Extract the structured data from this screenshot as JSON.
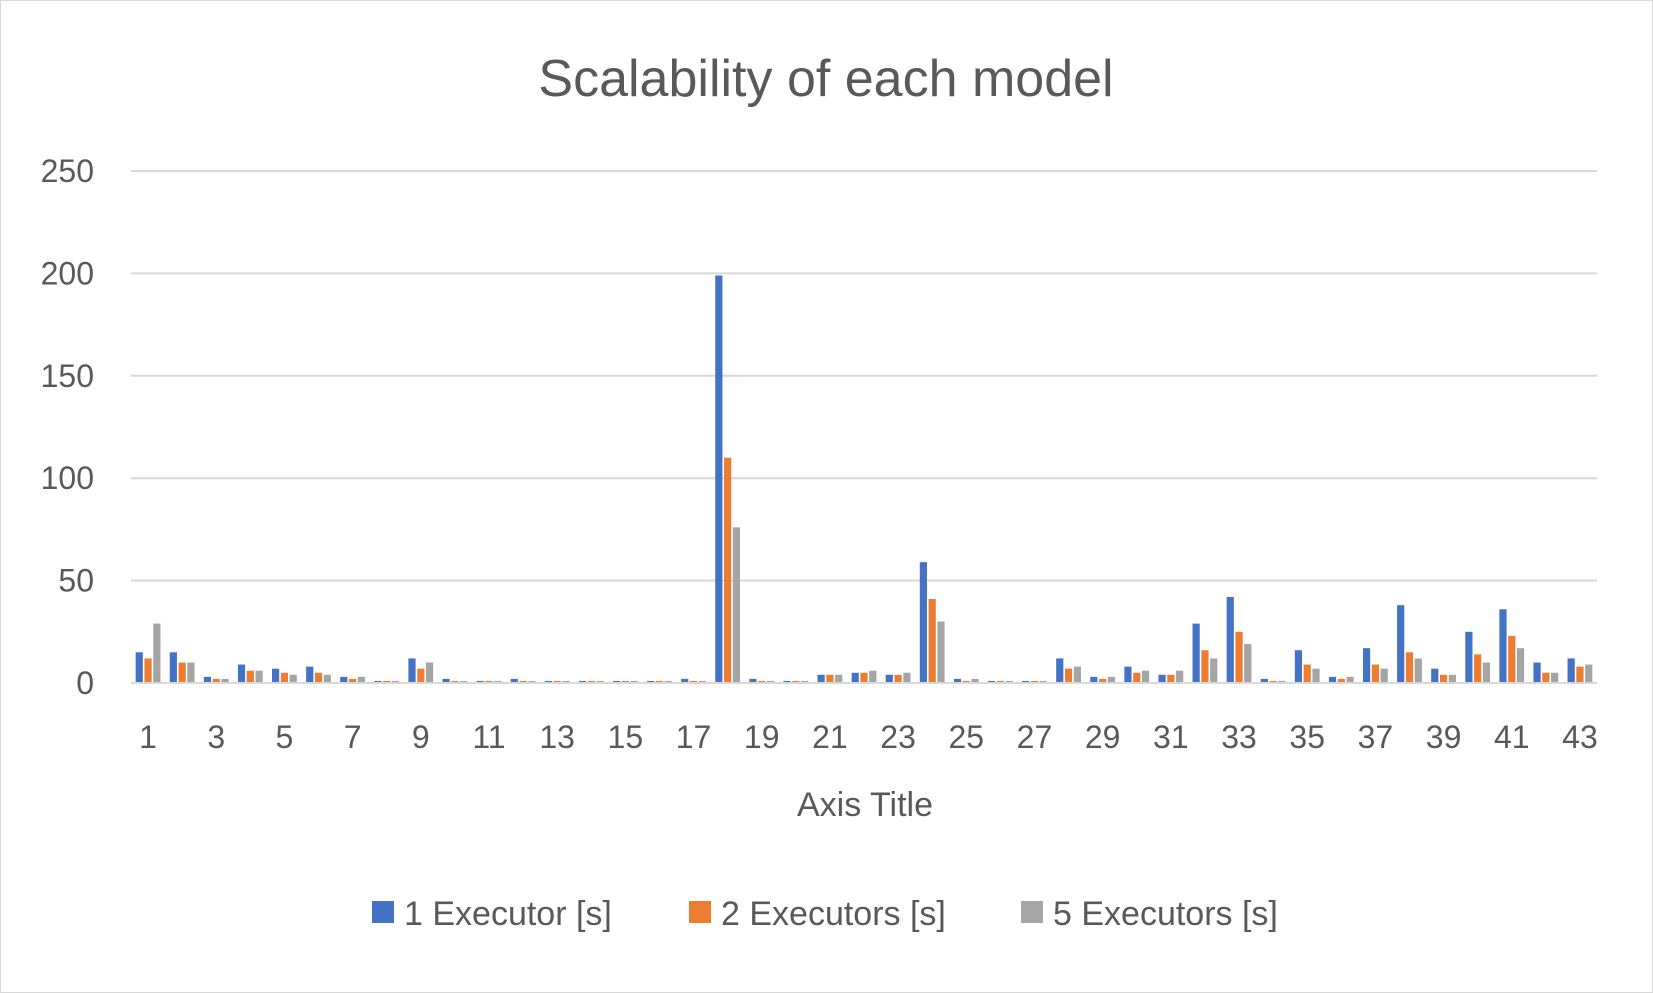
{
  "chart_data": {
    "type": "bar",
    "title": "Scalability of each model",
    "xlabel": "Axis Title",
    "ylabel": "",
    "ylim": [
      0,
      250
    ],
    "yticks": [
      0,
      50,
      100,
      150,
      200,
      250
    ],
    "grid": true,
    "legend_position": "bottom",
    "categories": [
      1,
      2,
      3,
      4,
      5,
      6,
      7,
      8,
      9,
      10,
      11,
      12,
      13,
      14,
      15,
      16,
      17,
      18,
      19,
      20,
      21,
      22,
      23,
      24,
      25,
      26,
      27,
      28,
      29,
      30,
      31,
      32,
      33,
      34,
      35,
      36,
      37,
      38,
      39,
      40,
      41,
      42,
      43
    ],
    "x_tick_labels": [
      "1",
      "3",
      "5",
      "7",
      "9",
      "11",
      "13",
      "15",
      "17",
      "19",
      "21",
      "23",
      "25",
      "27",
      "29",
      "31",
      "33",
      "35",
      "37",
      "39",
      "41",
      "43"
    ],
    "series": [
      {
        "name": "1 Executor [s]",
        "color": "#4472c4",
        "values": [
          15,
          15,
          3,
          9,
          7,
          8,
          3,
          1,
          12,
          2,
          1,
          2,
          1,
          1,
          1,
          1,
          2,
          199,
          2,
          1,
          4,
          5,
          4,
          59,
          2,
          1,
          1,
          12,
          3,
          8,
          4,
          29,
          42,
          2,
          16,
          3,
          17,
          38,
          7,
          25,
          36,
          10,
          12
        ]
      },
      {
        "name": "2 Executors [s]",
        "color": "#ed7d31",
        "values": [
          12,
          10,
          2,
          6,
          5,
          5,
          2,
          1,
          7,
          1,
          1,
          1,
          1,
          1,
          1,
          1,
          1,
          110,
          1,
          1,
          4,
          5,
          4,
          41,
          1,
          1,
          1,
          7,
          2,
          5,
          4,
          16,
          25,
          1,
          9,
          2,
          9,
          15,
          4,
          14,
          23,
          5,
          8
        ]
      },
      {
        "name": "5 Executors [s]",
        "color": "#a5a5a5",
        "values": [
          29,
          10,
          2,
          6,
          4,
          4,
          3,
          1,
          10,
          1,
          1,
          1,
          1,
          1,
          1,
          1,
          1,
          76,
          1,
          1,
          4,
          6,
          5,
          30,
          2,
          1,
          1,
          8,
          3,
          6,
          6,
          12,
          19,
          1,
          7,
          3,
          7,
          12,
          4,
          10,
          17,
          5,
          9
        ]
      }
    ]
  }
}
